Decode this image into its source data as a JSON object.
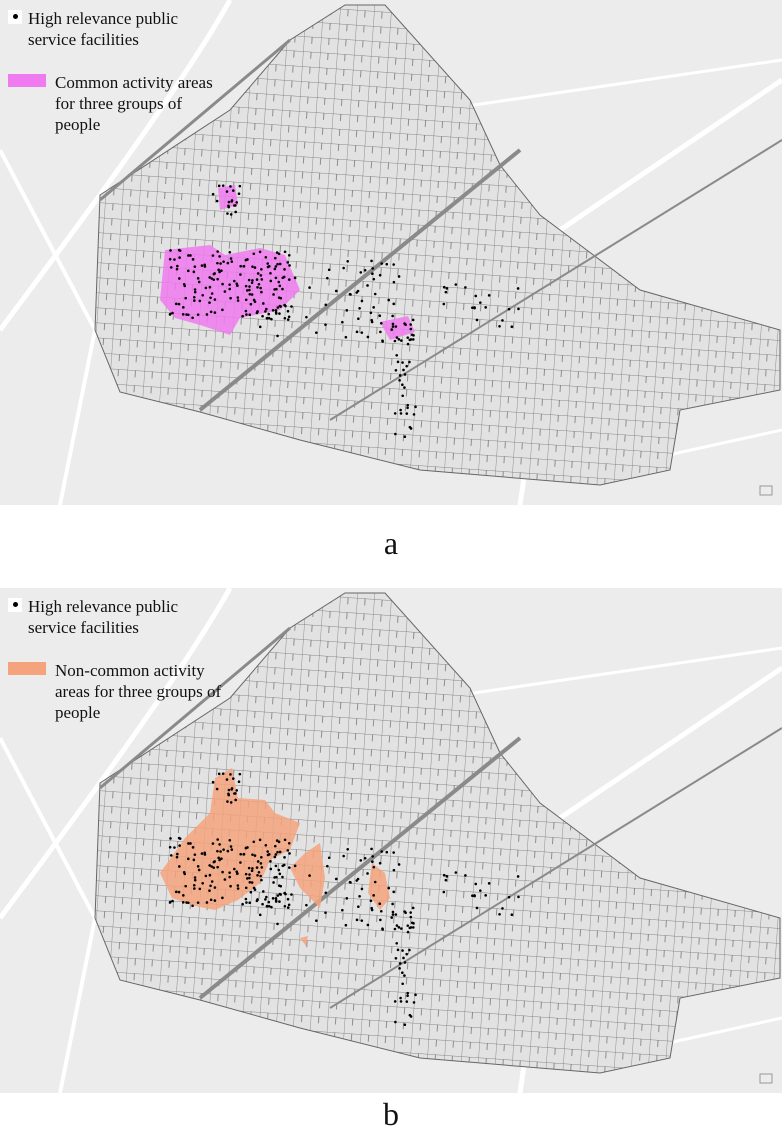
{
  "panels": [
    {
      "legend": {
        "facilities": "High relevance public service facilities",
        "areas": "Common activity areas for three groups of people"
      },
      "label": "a"
    },
    {
      "legend": {
        "facilities": "High relevance public service facilities",
        "areas": "Non-common activity areas for three groups of people"
      },
      "label": "b"
    }
  ]
}
